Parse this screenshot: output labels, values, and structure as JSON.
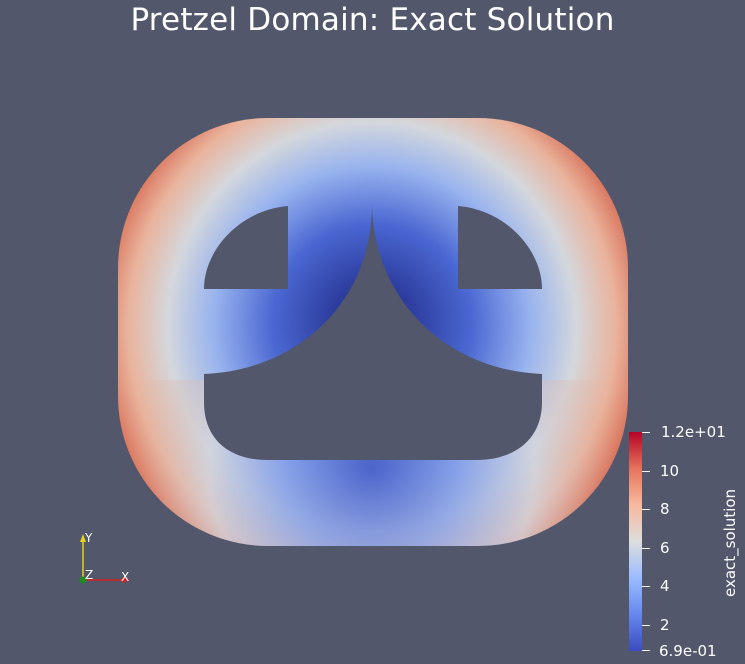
{
  "title": "Pretzel Domain: Exact Solution",
  "colorbar": {
    "field_name": "exact_solution",
    "range": [
      0.69,
      12
    ],
    "range_labels": [
      "1.2e+01",
      "6.9e-01"
    ],
    "ticks": [
      {
        "value": 10,
        "label": "10"
      },
      {
        "value": 8,
        "label": "8"
      },
      {
        "value": 6,
        "label": "6"
      },
      {
        "value": 4,
        "label": "4"
      },
      {
        "value": 2,
        "label": "2"
      }
    ],
    "colormap": [
      "#3b4cc0",
      "#7b9ff9",
      "#c0d4f5",
      "#dddddd",
      "#f2cbb7",
      "#ee8468",
      "#b40426"
    ]
  },
  "orientation_axes": {
    "x_label": "X",
    "y_label": "Y",
    "z_label": "Z",
    "x_color": "#d62020",
    "y_color": "#e6d21c",
    "z_color": "#1f8a1f"
  },
  "colors": {
    "background": "#52576b",
    "low": "#2d3d9e",
    "high": "#b40426"
  }
}
